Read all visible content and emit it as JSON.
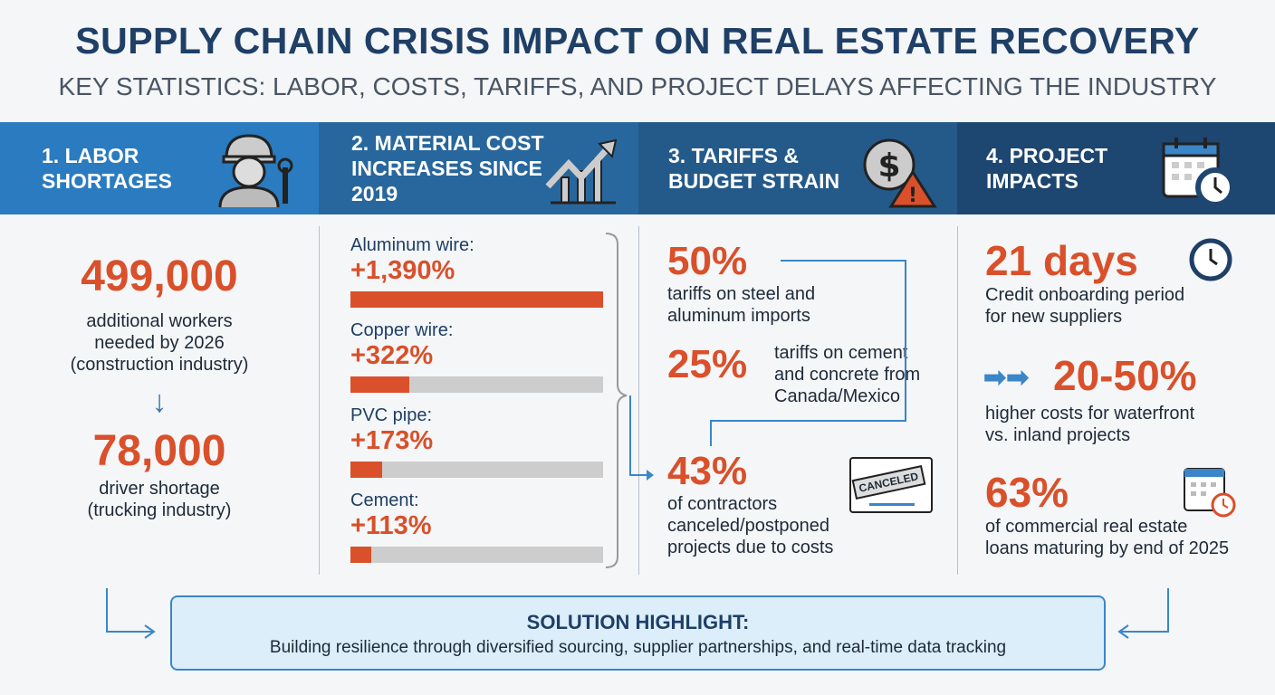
{
  "title": "SUPPLY CHAIN CRISIS IMPACT ON REAL ESTATE RECOVERY",
  "subtitle": "KEY STATISTICS: LABOR, COSTS, TARIFFS, AND PROJECT DELAYS AFFECTING THE INDUSTRY",
  "colors": {
    "navy": "#1f3f66",
    "accent": "#d9502a",
    "band1": "#2a7bbf",
    "band2": "#28679d",
    "band3": "#245a8a",
    "band4": "#1d4670"
  },
  "sections": [
    {
      "heading": "1. LABOR SHORTAGES",
      "icon": "construction-worker-icon"
    },
    {
      "heading": "2. MATERIAL COST INCREASES SINCE 2019",
      "icon": "rising-chart-icon"
    },
    {
      "heading": "3. TARIFFS & BUDGET STRAIN",
      "icon": "dollar-warning-icon"
    },
    {
      "heading": "4. PROJECT IMPACTS",
      "icon": "calendar-clock-icon"
    }
  ],
  "labor": {
    "stat1": "499,000",
    "desc1a": "additional workers",
    "desc1b": "needed by 2026",
    "desc1c": "(construction industry)",
    "stat2": "78,000",
    "desc2a": "driver shortage",
    "desc2b": "(trucking industry)"
  },
  "materials": [
    {
      "label": "Aluminum wire:",
      "value": "+1,390%",
      "percent": 1390
    },
    {
      "label": "Copper wire:",
      "value": "+322%",
      "percent": 322
    },
    {
      "label": "PVC pipe:",
      "value": "+173%",
      "percent": 173
    },
    {
      "label": "Cement:",
      "value": "+113%",
      "percent": 113
    }
  ],
  "tariffs": {
    "stat1": "50%",
    "desc1a": "tariffs on steel and",
    "desc1b": "aluminum imports",
    "stat2": "25%",
    "desc2a": "tariffs on cement",
    "desc2b": "and concrete from",
    "desc2c": "Canada/Mexico",
    "stat3": "43%",
    "desc3a": "of contractors",
    "desc3b": "canceled/postponed",
    "desc3c": "projects due to costs",
    "stamp": "CANCELED"
  },
  "impacts": {
    "stat1": "21 days",
    "desc1a": "Credit onboarding period",
    "desc1b": "for new suppliers",
    "stat2": "20-50%",
    "desc2a": "higher costs for waterfront",
    "desc2b": "vs. inland projects",
    "stat3": "63%",
    "desc3a": "of commercial real estate",
    "desc3b": "loans maturing by end of 2025"
  },
  "solution": {
    "heading": "SOLUTION HIGHLIGHT:",
    "body": "Building resilience through diversified sourcing, supplier partnerships, and real-time data tracking"
  }
}
